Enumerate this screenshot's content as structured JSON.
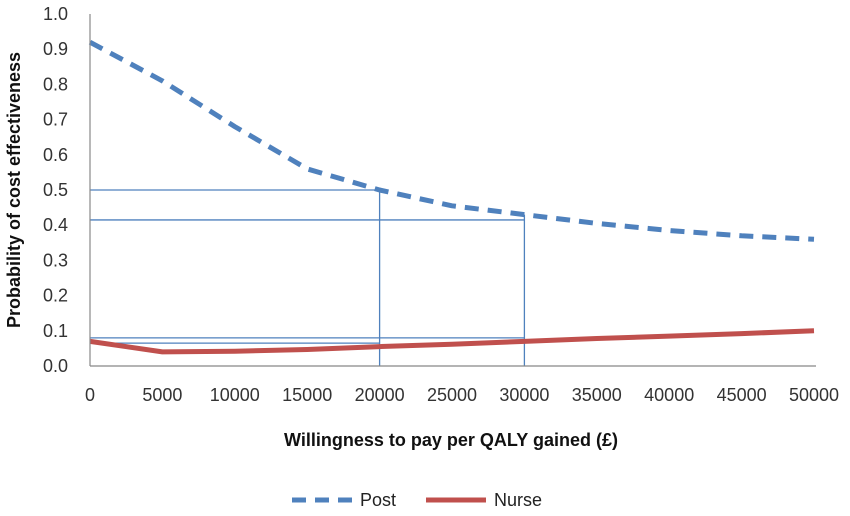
{
  "chart_data": {
    "type": "line",
    "title": "",
    "xlabel": "Willingness to pay per QALY gained (£)",
    "ylabel": "Probability of cost effectiveness",
    "xlim": [
      0,
      50000
    ],
    "ylim": [
      0,
      1.0
    ],
    "x_ticks": [
      "0",
      "5000",
      "10000",
      "15000",
      "20000",
      "25000",
      "30000",
      "35000",
      "40000",
      "45000",
      "50000"
    ],
    "y_ticks": [
      "0.0",
      "0.1",
      "0.2",
      "0.3",
      "0.4",
      "0.5",
      "0.6",
      "0.7",
      "0.8",
      "0.9",
      "1.0"
    ],
    "grid": false,
    "legend_position": "bottom",
    "series": [
      {
        "name": "Post",
        "color": "#4f81bd",
        "style": "dashed",
        "x": [
          0,
          5000,
          10000,
          15000,
          20000,
          25000,
          30000,
          35000,
          40000,
          45000,
          50000
        ],
        "y": [
          0.92,
          0.81,
          0.68,
          0.56,
          0.5,
          0.455,
          0.43,
          0.405,
          0.385,
          0.37,
          0.36
        ]
      },
      {
        "name": "Nurse",
        "color": "#c0504d",
        "style": "solid",
        "x": [
          0,
          5000,
          10000,
          15000,
          20000,
          25000,
          30000,
          35000,
          40000,
          45000,
          50000
        ],
        "y": [
          0.07,
          0.04,
          0.042,
          0.047,
          0.055,
          0.062,
          0.07,
          0.078,
          0.085,
          0.092,
          0.1
        ]
      }
    ],
    "reference_lines": {
      "color": "#4f81bd",
      "vertical_x": [
        20000,
        30000
      ],
      "horizontal": [
        {
          "x_end": 20000,
          "y": 0.5
        },
        {
          "x_end": 30000,
          "y": 0.415
        },
        {
          "x_end": 30000,
          "y": 0.08
        },
        {
          "x_end": 20000,
          "y": 0.065
        }
      ]
    }
  }
}
